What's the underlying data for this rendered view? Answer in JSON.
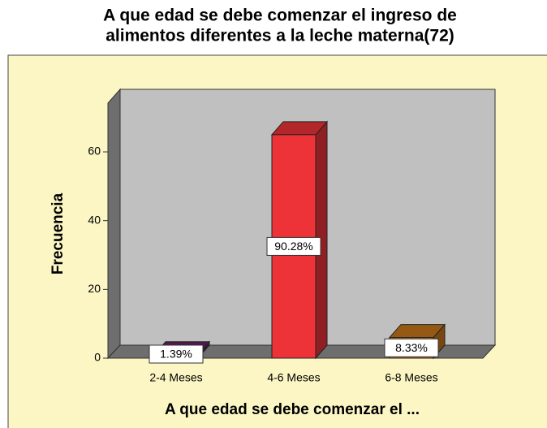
{
  "chart_data": {
    "type": "bar3d",
    "title": [
      "A que edad se debe comenzar el ingreso de",
      "alimentos diferentes a la leche materna(72)"
    ],
    "x_label": "A que edad se debe comenzar el ...",
    "y_label": "Frecuencia",
    "categories": [
      "2-4 Meses",
      "4-6 Meses",
      "6-8 Meses"
    ],
    "values": [
      1,
      65,
      6
    ],
    "colors": [
      "#6b1f6b",
      "#ee3338",
      "#c8761a"
    ],
    "percentages": [
      1.39,
      90.28,
      8.33
    ],
    "percentage_labels": [
      "1.39%",
      "90.28%",
      "8.33%"
    ],
    "ylim": [
      0,
      75
    ],
    "yticks": [
      0,
      20,
      40,
      60
    ]
  }
}
